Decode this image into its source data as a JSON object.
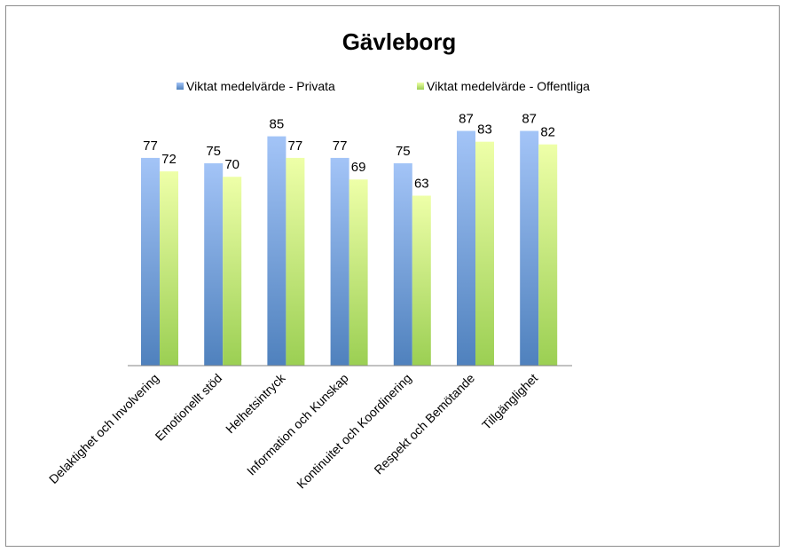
{
  "chart_data": {
    "type": "bar",
    "title": "Gävleborg",
    "categories": [
      "Delaktighet och Involvering",
      "Emotionellt stöd",
      "Helhetsintryck",
      "Information och Kunskap",
      "Kontinuitet och Koordinering",
      "Respekt och Bemötande",
      "Tillgänglighet"
    ],
    "series": [
      {
        "name": "Viktat medelvärde - Privata",
        "values": [
          77,
          75,
          85,
          77,
          75,
          87,
          87
        ],
        "color": "#4f81bd",
        "color_light": "#a3c4f7"
      },
      {
        "name": "Viktat medelvärde - Offentliga",
        "values": [
          72,
          70,
          77,
          69,
          63,
          83,
          82
        ],
        "color": "#9bcf53",
        "color_light": "#eeffa8"
      }
    ],
    "ylim": [
      0,
      100
    ],
    "grid": false,
    "legend_position": "top",
    "xlabel": "",
    "ylabel": ""
  }
}
